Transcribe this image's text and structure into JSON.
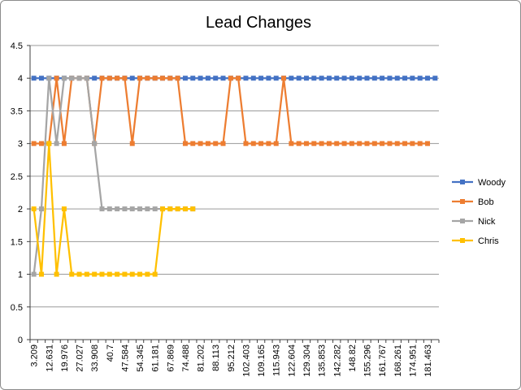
{
  "chart_data": {
    "type": "line",
    "title": "Lead Changes",
    "xlabel": "",
    "ylabel": "",
    "ylim": [
      0,
      4.5
    ],
    "yticks": [
      0,
      0.5,
      1,
      1.5,
      2,
      2.5,
      3,
      3.5,
      4,
      4.5
    ],
    "grid": true,
    "legend": "right",
    "x_tick_labels": [
      "3.209",
      "12.631",
      "19.976",
      "27.027",
      "33.908",
      "40.7",
      "47.584",
      "54.345",
      "61.181",
      "67.869",
      "74.488",
      "81.202",
      "88.113",
      "95.212",
      "102.403",
      "109.165",
      "115.943",
      "122.604",
      "129.304",
      "135.853",
      "142.282",
      "148.82",
      "155.296",
      "161.767",
      "168.261",
      "174.951",
      "181.463"
    ],
    "series": [
      {
        "name": "Woody",
        "color": "#4472C4",
        "marker": "square",
        "values": [
          4,
          4,
          4,
          4,
          4,
          4,
          4,
          4,
          4,
          4,
          4,
          4,
          4,
          4,
          4,
          4,
          4,
          4,
          4,
          4,
          4,
          4,
          4,
          4,
          4,
          4,
          4,
          4,
          4,
          4,
          4,
          4,
          4,
          4,
          4,
          4,
          4,
          4,
          4,
          4,
          4,
          4,
          4,
          4,
          4,
          4,
          4,
          4,
          4,
          4,
          4,
          4,
          4,
          4
        ]
      },
      {
        "name": "Bob",
        "color": "#ED7D31",
        "marker": "square",
        "values": [
          3,
          3,
          3,
          4,
          3,
          4,
          4,
          4,
          3,
          4,
          4,
          4,
          4,
          3,
          4,
          4,
          4,
          4,
          4,
          4,
          3,
          3,
          3,
          3,
          3,
          3,
          4,
          4,
          3,
          3,
          3,
          3,
          3,
          4,
          3,
          3,
          3,
          3,
          3,
          3,
          3,
          3,
          3,
          3,
          3,
          3,
          3,
          3,
          3,
          3,
          3,
          3,
          3
        ]
      },
      {
        "name": "Nick",
        "color": "#A5A5A5",
        "marker": "square",
        "values": [
          1,
          2,
          4,
          3,
          4,
          4,
          4,
          4,
          3,
          2,
          2,
          2,
          2,
          2,
          2,
          2,
          2,
          2,
          2,
          2,
          2,
          2
        ]
      },
      {
        "name": "Chris",
        "color": "#FFC000",
        "marker": "square",
        "values": [
          2,
          1,
          3,
          1,
          2,
          1,
          1,
          1,
          1,
          1,
          1,
          1,
          1,
          1,
          1,
          1,
          1,
          2,
          2,
          2,
          2,
          2
        ]
      }
    ]
  }
}
